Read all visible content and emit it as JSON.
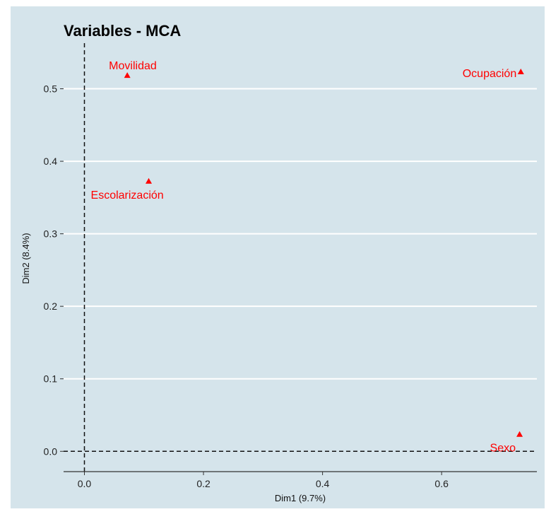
{
  "chart_data": {
    "type": "scatter",
    "title": "Variables - MCA",
    "xlabel": "Dim1 (9.7%)",
    "ylabel": "Dim2 (8.4%)",
    "xlim": [
      -0.035,
      0.76
    ],
    "ylim": [
      -0.028,
      0.56
    ],
    "xticks": [
      0.0,
      0.2,
      0.4,
      0.6
    ],
    "xtick_labels": [
      "0.0",
      "0.2",
      "0.4",
      "0.6"
    ],
    "yticks": [
      0.0,
      0.1,
      0.2,
      0.3,
      0.4,
      0.5
    ],
    "ytick_labels": [
      "0.0",
      "0.1",
      "0.2",
      "0.3",
      "0.4",
      "0.5"
    ],
    "grid": "horizontal",
    "reference_lines": {
      "x": 0,
      "y": 0,
      "style": "dashed"
    },
    "marker": "triangle",
    "color": "#ff0000",
    "points": [
      {
        "label": "Movilidad",
        "x": 0.072,
        "y": 0.518,
        "label_pos": "top-right"
      },
      {
        "label": "Ocupación",
        "x": 0.733,
        "y": 0.523,
        "label_pos": "left"
      },
      {
        "label": "Escolarización",
        "x": 0.108,
        "y": 0.372,
        "label_pos": "bottom"
      },
      {
        "label": "Sexo",
        "x": 0.731,
        "y": 0.023,
        "label_pos": "bottom-left"
      }
    ]
  }
}
